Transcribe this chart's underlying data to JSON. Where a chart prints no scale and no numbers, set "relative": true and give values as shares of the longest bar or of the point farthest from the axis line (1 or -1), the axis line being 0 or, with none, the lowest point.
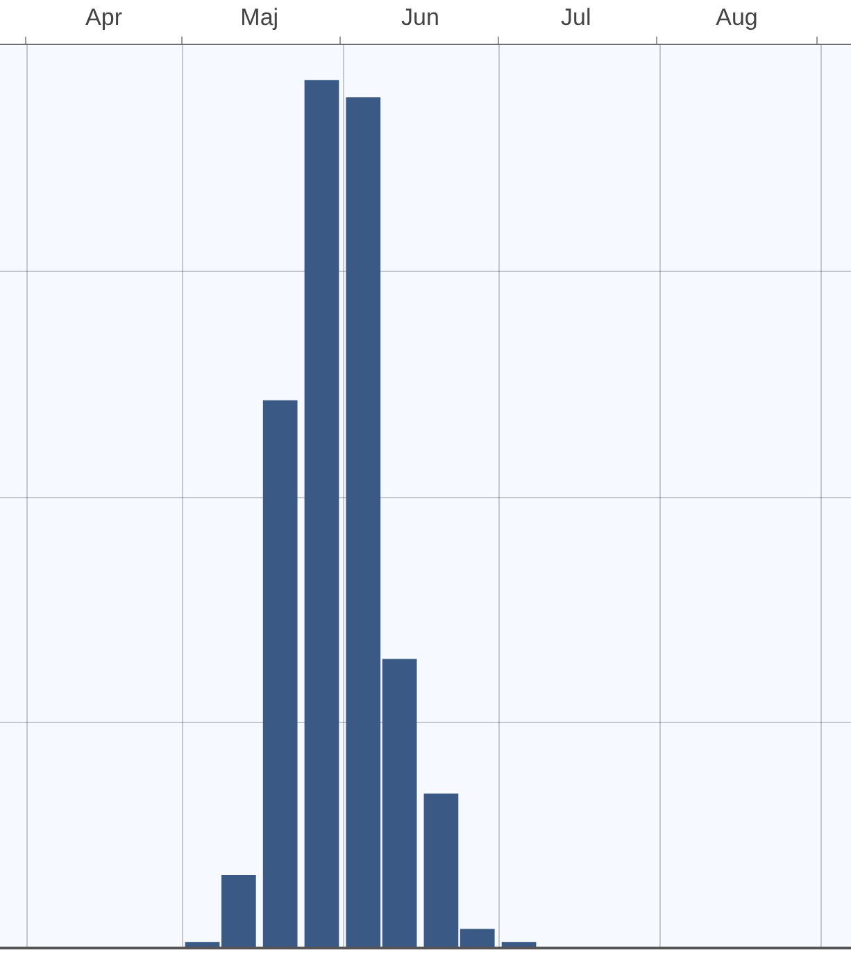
{
  "chart_data": {
    "type": "bar",
    "relative": true,
    "x": [
      "--05-05",
      "--05-12",
      "--05-20",
      "--05-28",
      "--06-05",
      "--06-12",
      "--06-20",
      "--06-27",
      "--07-05"
    ],
    "values": [
      0.007,
      0.084,
      0.631,
      1,
      0.98,
      0.333,
      0.178,
      0.022,
      0.007
    ],
    "color": "#3a5a85",
    "xlim": [
      "--03-27",
      "--09-07"
    ],
    "xticks": [
      {
        "value": "--04-16",
        "label": "Apr"
      },
      {
        "value": "--05-16",
        "label": "Maj"
      },
      {
        "value": "--06-16",
        "label": "Jun"
      },
      {
        "value": "--07-16",
        "label": "Jul"
      },
      {
        "value": "--08-16",
        "label": "Aug"
      }
    ],
    "grid": true,
    "legend": false
  }
}
